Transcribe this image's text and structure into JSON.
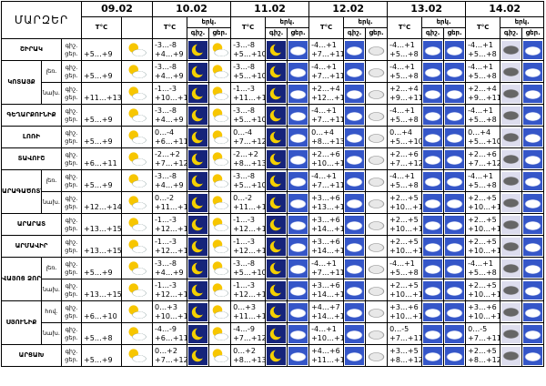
{
  "header": {
    "region_label": "ՄԱՐԶԵՐ",
    "dates": [
      "09.02",
      "10.02",
      "11.02",
      "12.02",
      "13.02",
      "14.02"
    ],
    "temp_label": "T°C",
    "icon_label": "երկ.",
    "night_label": "գիշ.",
    "day_label": "ցեր."
  },
  "regions": [
    {
      "name": "ՇԻՐԱԿ",
      "rows": [
        {
          "today": "+5…+9",
          "days": [
            [
              "-3…-8",
              "+4…+9"
            ],
            [
              "-3…-8",
              "+5…+10"
            ],
            [
              "-4…+1",
              "+7…+11"
            ],
            [
              "-4…+1",
              "+5…+8"
            ],
            [
              "-4…+1",
              "+5…+8"
            ]
          ]
        }
      ]
    },
    {
      "name": "ԿՈՏԱՅՔ",
      "rows": [
        {
          "sub": "լեռ.",
          "today": "+5…+9",
          "days": [
            [
              "-3…-8",
              "+4…+9"
            ],
            [
              "-3…-8",
              "+5…+10"
            ],
            [
              "-4…+1",
              "+7…+11"
            ],
            [
              "-4…+1",
              "+5…+8"
            ],
            [
              "-4…+1",
              "+5…+8"
            ]
          ]
        },
        {
          "sub": "նախ.",
          "today": "+11…+13",
          "days": [
            [
              "-1…-3",
              "+10…+12"
            ],
            [
              "-1…-3",
              "+11…+13"
            ],
            [
              "+2…+4",
              "+12…+15"
            ],
            [
              "+2…+4",
              "+9…+11"
            ],
            [
              "+2…+4",
              "+9…+11"
            ]
          ]
        }
      ]
    },
    {
      "name": "ԳԵՂԱՐՔՈՒՆԻՔ",
      "rows": [
        {
          "today": "+5…+9",
          "days": [
            [
              "-3…-8",
              "+4…+9"
            ],
            [
              "-3…-8",
              "+5…+10"
            ],
            [
              "-4…+1",
              "+7…+11"
            ],
            [
              "-4…+1",
              "+5…+8"
            ],
            [
              "-4…+1",
              "+5…+8"
            ]
          ]
        }
      ]
    },
    {
      "name": "ԼՈՌԻ",
      "rows": [
        {
          "today": "+5…+9",
          "days": [
            [
              "0…-4",
              "+6…+11"
            ],
            [
              "0…-4",
              "+7…+12"
            ],
            [
              "0…+4",
              "+8…+13"
            ],
            [
              "0…+4",
              "+5…+10"
            ],
            [
              "0…+4",
              "+5…+10"
            ]
          ]
        }
      ]
    },
    {
      "name": "ՏԱՎՈՒՇ",
      "rows": [
        {
          "today": "+6…+11",
          "days": [
            [
              "-2…+2",
              "+7…+12"
            ],
            [
              "-2…+2",
              "+8…+13"
            ],
            [
              "+2…+6",
              "+10…+15"
            ],
            [
              "+2…+6",
              "+7…+12"
            ],
            [
              "+2…+6",
              "+7…+12"
            ]
          ]
        }
      ]
    },
    {
      "name": "ԱՐԱԳԱԾՈՏՆ",
      "rows": [
        {
          "sub": "լեռ.",
          "today": "+5…+9",
          "days": [
            [
              "-3…-8",
              "+4…+9"
            ],
            [
              "-3…-8",
              "+5…+10"
            ],
            [
              "-4…+1",
              "+7…+11"
            ],
            [
              "-4…+1",
              "+5…+8"
            ],
            [
              "-4…+1",
              "+5…+8"
            ]
          ]
        },
        {
          "sub": "նախ.",
          "today": "+12…+14",
          "days": [
            [
              "0…-2",
              "+11…+13"
            ],
            [
              "0…-2",
              "+11…+13"
            ],
            [
              "+3…+6",
              "+13…+15"
            ],
            [
              "+2…+5",
              "+10…+12"
            ],
            [
              "+2…+5",
              "+10…+12"
            ]
          ]
        }
      ]
    },
    {
      "name": "ԱՐԱՐԱՏ",
      "rows": [
        {
          "today": "+13…+15",
          "days": [
            [
              "-1…-3",
              "+12…+14"
            ],
            [
              "-1…-3",
              "+12…+14"
            ],
            [
              "+3…+6",
              "+14…+16"
            ],
            [
              "+2…+5",
              "+10…+12"
            ],
            [
              "+2…+5",
              "+10…+12"
            ]
          ]
        }
      ]
    },
    {
      "name": "ԱՐՄԱՎԻՐ",
      "rows": [
        {
          "today": "+13…+15",
          "days": [
            [
              "-1…-3",
              "+12…+14"
            ],
            [
              "-1…-3",
              "+12…+14"
            ],
            [
              "+3…+6",
              "+14…+16"
            ],
            [
              "+2…+5",
              "+10…+12"
            ],
            [
              "+2…+5",
              "+10…+12"
            ]
          ]
        }
      ]
    },
    {
      "name": "ՎԱՅՈՑ ՁՈՐ",
      "rows": [
        {
          "sub": "լեռ.",
          "today": "+5…+9",
          "days": [
            [
              "-3…-8",
              "+4…+9"
            ],
            [
              "-3…-8",
              "+5…+10"
            ],
            [
              "-4…+1",
              "+7…+11"
            ],
            [
              "-4…+1",
              "+5…+8"
            ],
            [
              "-4…+1",
              "+5…+8"
            ]
          ]
        },
        {
          "sub": "նախ.",
          "today": "+13…+15",
          "days": [
            [
              "-1…-3",
              "+12…+14"
            ],
            [
              "-1…-3",
              "+12…+14"
            ],
            [
              "+3…+6",
              "+14…+16"
            ],
            [
              "+2…+5",
              "+10…+12"
            ],
            [
              "+2…+5",
              "+10…+12"
            ]
          ]
        }
      ]
    },
    {
      "name": "ՍՅՈՒՆԻՔ",
      "rows": [
        {
          "sub": "հով.",
          "today": "+6…+10",
          "days": [
            [
              "0…+3",
              "+10…+14"
            ],
            [
              "0…+3",
              "+11…+14"
            ],
            [
              "+4…+7",
              "+14…+18"
            ],
            [
              "+3…+6",
              "+10…+13"
            ],
            [
              "+3…+6",
              "+10…+13"
            ]
          ]
        },
        {
          "sub": "նախ.",
          "today": "+5…+8",
          "days": [
            [
              "-4…-9",
              "+6…+11"
            ],
            [
              "-4…-9",
              "+7…+12"
            ],
            [
              "-4…+1",
              "+10…+15"
            ],
            [
              "0…-5",
              "+7…+11"
            ],
            [
              "0…-5",
              "+7…+11"
            ]
          ]
        }
      ]
    },
    {
      "name": "ԱՐՑԱԽ",
      "rows": [
        {
          "today": "+5…+9",
          "days": [
            [
              "0…+2",
              "+7…+12"
            ],
            [
              "0…+2",
              "+8…+13"
            ],
            [
              "+4…+6",
              "+11…+16"
            ],
            [
              "+3…+5",
              "+8…+12"
            ],
            [
              "+2…+5",
              "+8…+12"
            ]
          ]
        }
      ]
    }
  ]
}
